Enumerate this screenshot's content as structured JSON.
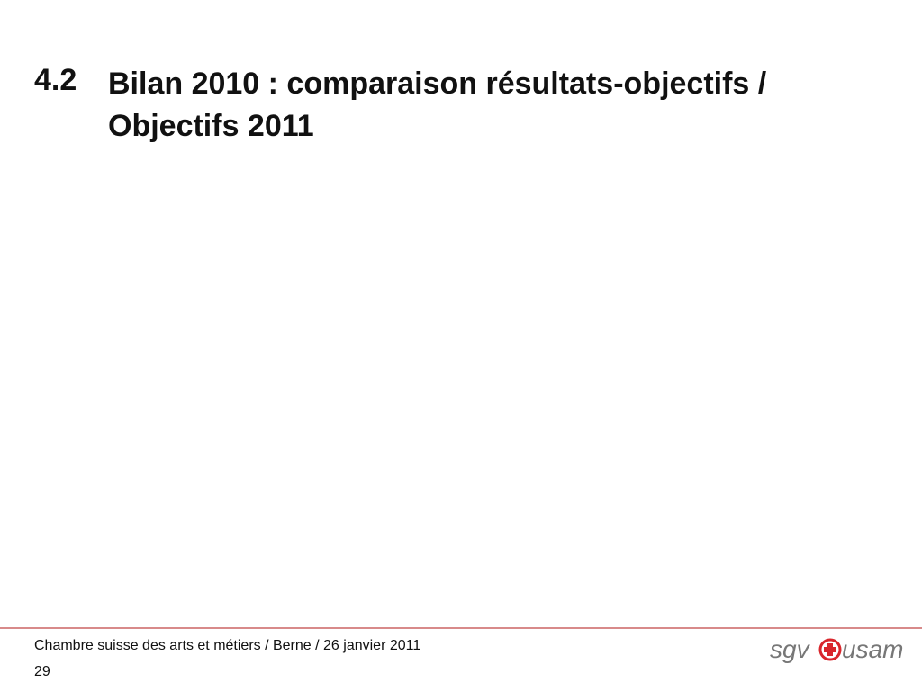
{
  "slide": {
    "section_number": "4.2",
    "title": "Bilan 2010 : comparaison résultats-objectifs / Objectifs 2011"
  },
  "footer": {
    "text": "Chambre suisse des arts et métiers / Berne / 26 janvier 2011",
    "page_number": "29",
    "logo": {
      "left": "sgv",
      "right": "usam"
    }
  }
}
